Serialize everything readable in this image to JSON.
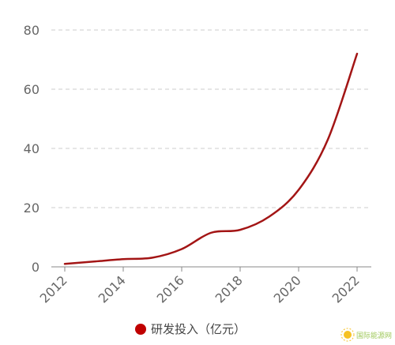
{
  "chart_data": {
    "type": "line",
    "x": [
      2012,
      2013,
      2014,
      2015,
      2016,
      2017,
      2018,
      2019,
      2020,
      2021,
      2022
    ],
    "series": [
      {
        "name": "研发投入（亿元）",
        "color": "#a31515",
        "values": [
          1,
          1.8,
          2.6,
          3.1,
          6,
          11.5,
          12.5,
          17,
          26,
          43,
          72
        ]
      }
    ],
    "x_ticks": [
      "2012",
      "2014",
      "2016",
      "2018",
      "2020",
      "2022"
    ],
    "y_ticks": [
      "0",
      "20",
      "40",
      "60",
      "80"
    ],
    "xlim": [
      2012,
      2022
    ],
    "ylim": [
      0,
      80
    ],
    "grid": "horizontal dashed",
    "legend_position": "bottom-center",
    "legend_marker_color": "#c00000"
  },
  "watermark": {
    "text": "国际能源网",
    "icon": "sun-logo-icon"
  }
}
